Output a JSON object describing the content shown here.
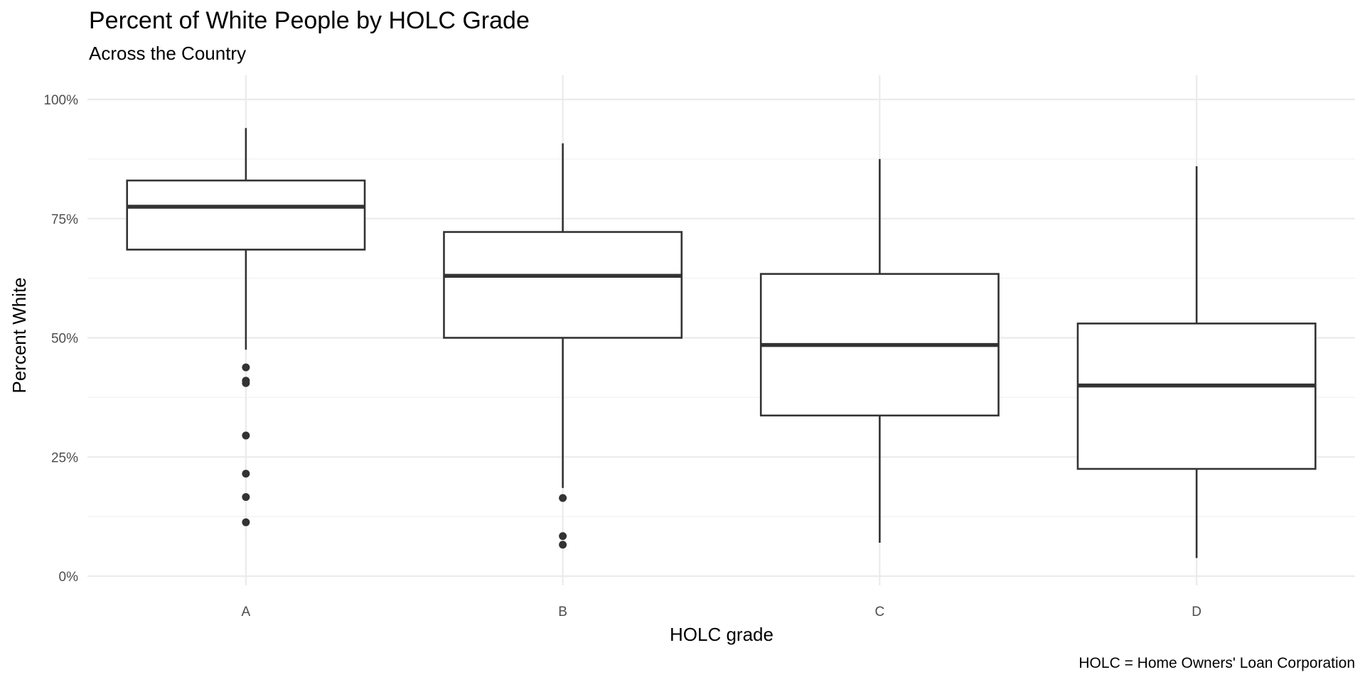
{
  "chart_data": {
    "type": "boxplot",
    "title": "Percent of White People by HOLC Grade",
    "subtitle": "Across the Country",
    "xlabel": "HOLC grade",
    "ylabel": "Percent White",
    "caption": "HOLC = Home Owners' Loan Corporation",
    "ylim": [
      0,
      1.0
    ],
    "y_ticks": [
      0,
      0.25,
      0.5,
      0.75,
      1.0
    ],
    "y_tick_labels": [
      "0%",
      "25%",
      "50%",
      "75%",
      "100%"
    ],
    "y_minor_ticks": [
      0.125,
      0.375,
      0.625,
      0.875
    ],
    "grid": true,
    "legend": "none",
    "categories": [
      "A",
      "B",
      "C",
      "D"
    ],
    "boxes": [
      {
        "category": "A",
        "whisker_low": 0.475,
        "q1": 0.685,
        "median": 0.775,
        "q3": 0.83,
        "whisker_high": 0.94,
        "outliers": [
          0.438,
          0.41,
          0.405,
          0.295,
          0.215,
          0.166,
          0.113
        ]
      },
      {
        "category": "B",
        "whisker_low": 0.185,
        "q1": 0.5,
        "median": 0.63,
        "q3": 0.722,
        "whisker_high": 0.908,
        "outliers": [
          0.164,
          0.084,
          0.066
        ]
      },
      {
        "category": "C",
        "whisker_low": 0.07,
        "q1": 0.337,
        "median": 0.485,
        "q3": 0.634,
        "whisker_high": 0.875,
        "outliers": []
      },
      {
        "category": "D",
        "whisker_low": 0.038,
        "q1": 0.225,
        "median": 0.4,
        "q3": 0.53,
        "whisker_high": 0.86,
        "outliers": []
      }
    ],
    "colors": {
      "box_line": "#333333",
      "box_fill": "#ffffff",
      "grid": "#ebebeb"
    }
  }
}
